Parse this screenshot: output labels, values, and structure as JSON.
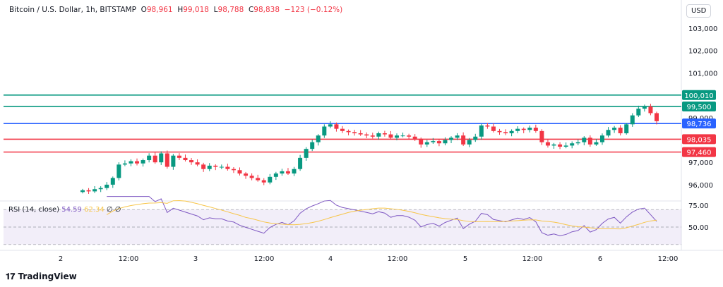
{
  "header": {
    "title": "Bitcoin / U.S. Dollar, 1h, BITSTAMP",
    "o_label": "O",
    "open": "98,961",
    "h_label": "H",
    "high": "99,018",
    "l_label": "L",
    "low": "98,788",
    "c_label": "C",
    "close": "98,838",
    "change": "−123 (−0.12%)"
  },
  "currency_button": "USD",
  "brand": "TradingView",
  "chart_data": {
    "type": "candlestick",
    "title": "Bitcoin / U.S. Dollar, 1h, BITSTAMP",
    "ylim": [
      95500,
      103500
    ],
    "y_ticks": [
      {
        "v": 103000,
        "label": "103,000"
      },
      {
        "v": 102000,
        "label": "102,000"
      },
      {
        "v": 101000,
        "label": "101,000"
      },
      {
        "v": 99000,
        "label": "99,000"
      },
      {
        "v": 97000,
        "label": "97,000"
      },
      {
        "v": 96000,
        "label": "96,000"
      }
    ],
    "x_ticks": [
      "2",
      "12:00",
      "3",
      "12:00",
      "4",
      "12:00",
      "5",
      "12:00",
      "6",
      "12:00"
    ],
    "closes": [
      95750,
      95700,
      95800,
      95850,
      96000,
      96300,
      96900,
      96950,
      97050,
      96950,
      97100,
      97300,
      97000,
      97400,
      96800,
      97300,
      97200,
      97100,
      97000,
      96900,
      96700,
      96850,
      96800,
      96800,
      96700,
      96650,
      96500,
      96400,
      96300,
      96200,
      96100,
      96350,
      96500,
      96600,
      96500,
      96700,
      97200,
      97600,
      97900,
      98200,
      98600,
      98700,
      98500,
      98400,
      98350,
      98300,
      98250,
      98200,
      98150,
      98300,
      98250,
      98100,
      98200,
      98200,
      98150,
      98050,
      97800,
      97900,
      97950,
      97850,
      98000,
      98100,
      98200,
      97800,
      98000,
      98150,
      98650,
      98600,
      98400,
      98350,
      98300,
      98400,
      98500,
      98450,
      98550,
      98400,
      97900,
      97750,
      97800,
      97700,
      97750,
      97850,
      97900,
      98100,
      97800,
      97900,
      98200,
      98450,
      98550,
      98300,
      98700,
      99100,
      99400,
      99500,
      99200,
      98840
    ],
    "levels": [
      {
        "value": 100010,
        "label": "100,010",
        "color": "#089981"
      },
      {
        "value": 99500,
        "label": "99,500",
        "color": "#089981"
      },
      {
        "value": 98736,
        "label": "98,736",
        "color": "#2962ff"
      },
      {
        "value": 98035,
        "label": "98,035",
        "color": "#f23645"
      },
      {
        "value": 97460,
        "label": "97,460",
        "color": "#f23645"
      }
    ],
    "up_color": "#089981",
    "down_color": "#f23645",
    "rsi": {
      "label": "RSI (14, close)",
      "value": "54.59",
      "ma_value": "62.34",
      "extra": "∅ ∅",
      "ticks": [
        "75.00",
        "50.00"
      ],
      "line_color": "#7e57c2",
      "ma_color": "#f7c548"
    }
  }
}
